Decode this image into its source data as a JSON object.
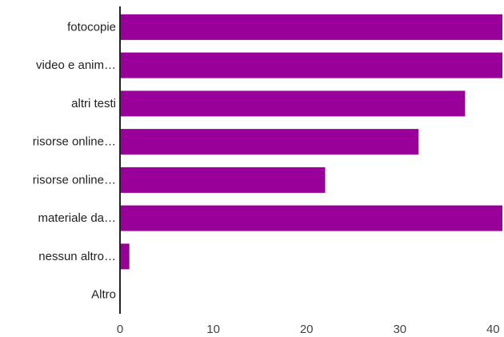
{
  "chart_data": {
    "type": "bar",
    "orientation": "horizontal",
    "categories": [
      "fotocopie",
      "video e anim…",
      "altri testi",
      "risorse online…",
      "risorse online…",
      "materiale da…",
      "nessun altro…",
      "Altro"
    ],
    "values": [
      41,
      41,
      37,
      32,
      22,
      41,
      1,
      0
    ],
    "xlim": [
      0,
      41
    ],
    "xticks": [
      0,
      10,
      20,
      30,
      40
    ],
    "xtick_labels": [
      "0",
      "10",
      "20",
      "30",
      "40"
    ],
    "title": "",
    "xlabel": "",
    "ylabel": "",
    "grid": false,
    "bar_color": "#990099"
  }
}
